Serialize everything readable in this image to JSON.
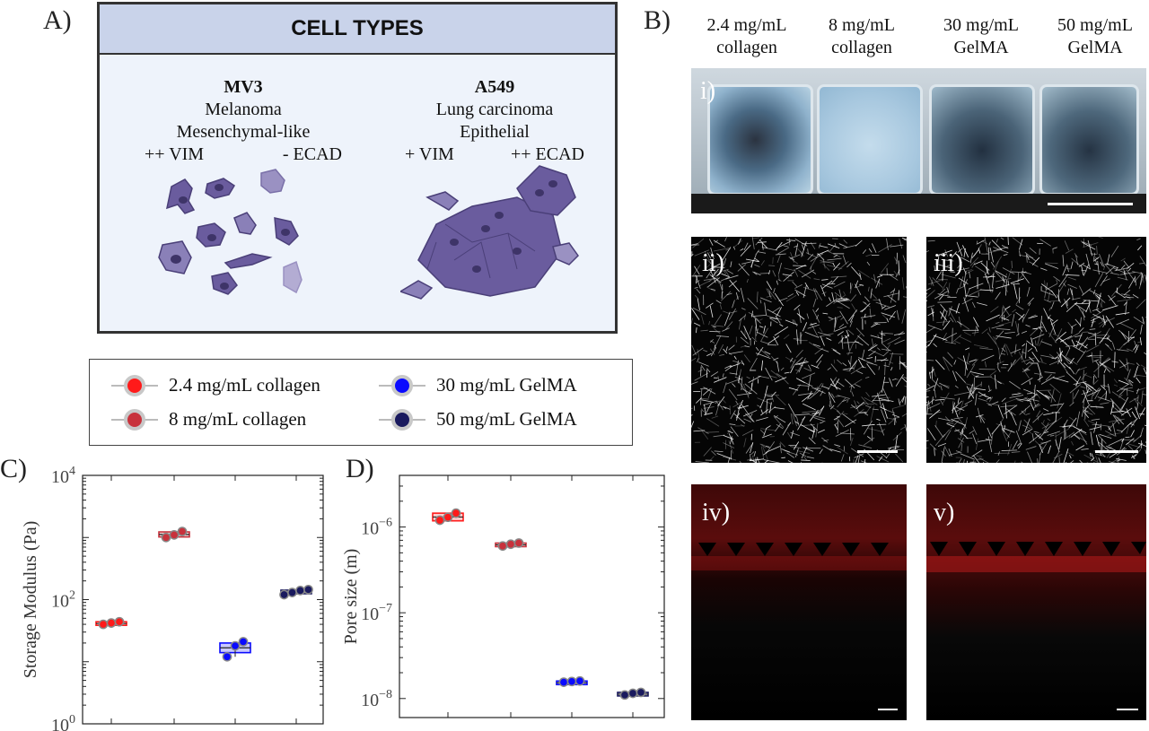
{
  "panels": {
    "a": "A)",
    "b": "B)",
    "c": "C)",
    "d": "D)"
  },
  "cell_types": {
    "header": "CELL TYPES",
    "mv3": {
      "name": "MV3",
      "type": "Melanoma",
      "phenotype": "Mesenchymal-like",
      "marker_vim": "++ VIM",
      "marker_ecad": "- ECAD"
    },
    "a549": {
      "name": "A549",
      "type": "Lung carcinoma",
      "phenotype": "Epithelial",
      "marker_vim": "+ VIM",
      "marker_ecad": "++ ECAD"
    }
  },
  "legend": [
    {
      "label": "2.4 mg/mL collagen",
      "color": "#ff1a1a"
    },
    {
      "label": "8 mg/mL collagen",
      "color": "#c8323c"
    },
    {
      "label": "30 mg/mL GelMA",
      "color": "#0a0aff"
    },
    {
      "label": "50 mg/mL GelMA",
      "color": "#1a1a5e"
    }
  ],
  "panel_b": {
    "columns": [
      {
        "line1": "2.4 mg/mL",
        "line2": "collagen"
      },
      {
        "line1": "8 mg/mL",
        "line2": "collagen"
      },
      {
        "line1": "30 mg/mL",
        "line2": "GelMA"
      },
      {
        "line1": "50 mg/mL",
        "line2": "GelMA"
      }
    ],
    "subpanels": {
      "i": "i)",
      "ii": "ii)",
      "iii": "iii)",
      "iv": "iv)",
      "v": "v)"
    }
  },
  "chart_data": [
    {
      "type": "box-scatter",
      "panel": "C",
      "ylabel": "Storage Modulus (Pa)",
      "yscale": "log",
      "ylim": [
        1,
        10000
      ],
      "ytick_labels": [
        "10^0",
        "10^2",
        "10^4"
      ],
      "groups": [
        {
          "name": "2.4 mg/mL collagen",
          "color": "#ff1a1a",
          "points": [
            40,
            42,
            44
          ],
          "box": [
            40,
            44
          ]
        },
        {
          "name": "8 mg/mL collagen",
          "color": "#c8323c",
          "points": [
            1000,
            1100,
            1250
          ],
          "box": [
            1020,
            1230
          ]
        },
        {
          "name": "30 mg/mL GelMA",
          "color": "#0a0aff",
          "points": [
            12,
            18,
            21
          ],
          "box": [
            14,
            20
          ]
        },
        {
          "name": "50 mg/mL GelMA",
          "color": "#1a1a5e",
          "points": [
            120,
            130,
            140,
            145
          ],
          "box": [
            128,
            142
          ]
        }
      ]
    },
    {
      "type": "box-scatter",
      "panel": "D",
      "ylabel": "Pore size (m)",
      "yscale": "log",
      "ylim": [
        6e-09,
        4e-06
      ],
      "ytick_labels": [
        "10^-8",
        "10^-7",
        "10^-6"
      ],
      "groups": [
        {
          "name": "2.4 mg/mL collagen",
          "color": "#ff1a1a",
          "points": [
            1.2e-06,
            1.3e-06,
            1.45e-06
          ],
          "box": [
            1.18e-06,
            1.45e-06
          ]
        },
        {
          "name": "8 mg/mL collagen",
          "color": "#c8323c",
          "points": [
            6e-07,
            6.3e-07,
            6.5e-07
          ],
          "box": [
            6e-07,
            6.5e-07
          ]
        },
        {
          "name": "30 mg/mL GelMA",
          "color": "#0a0aff",
          "points": [
            1.55e-08,
            1.58e-08,
            1.6e-08
          ],
          "box": [
            1.55e-08,
            1.6e-08
          ]
        },
        {
          "name": "50 mg/mL GelMA",
          "color": "#1a1a5e",
          "points": [
            1.1e-08,
            1.15e-08,
            1.18e-08
          ],
          "box": [
            1.1e-08,
            1.18e-08
          ]
        }
      ]
    }
  ]
}
